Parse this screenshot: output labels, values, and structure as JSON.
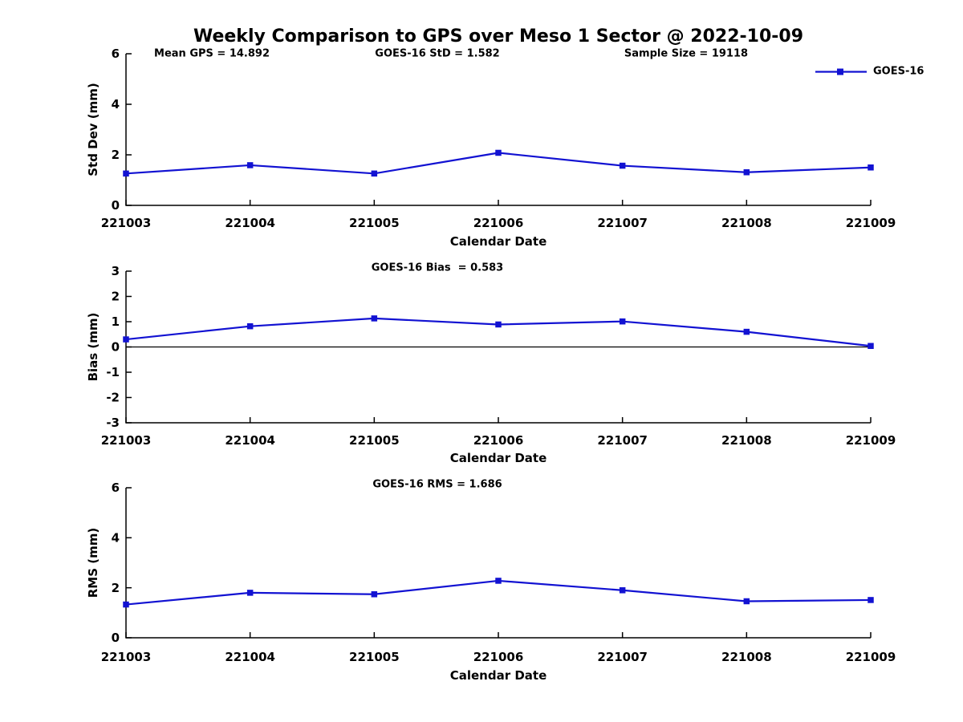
{
  "title": "Weekly Comparison to GPS over Meso 1 Sector @ 2022-10-09",
  "colors": {
    "series": "#1212D2",
    "axis": "#000000",
    "zero_line": "#000000",
    "background": "#FFFFFF"
  },
  "legend": {
    "label": "GOES-16",
    "marker": "square",
    "position": "top-right"
  },
  "chart_data": [
    {
      "type": "line",
      "title": "",
      "annotations": [
        "Mean GPS = 14.892",
        "GOES-16 StD = 1.582",
        "Sample Size = 19118"
      ],
      "ylabel": "Std Dev (mm)",
      "xlabel": "Calendar Date",
      "categories": [
        "221003",
        "221004",
        "221005",
        "221006",
        "221007",
        "221008",
        "221009"
      ],
      "ylim": [
        0,
        6
      ],
      "yticks": [
        0,
        2,
        4,
        6
      ],
      "grid": false,
      "zero_line": false,
      "legend_position": "top-right",
      "series": [
        {
          "name": "GOES-16",
          "marker": "square",
          "values": [
            1.26,
            1.59,
            1.26,
            2.08,
            1.57,
            1.31,
            1.5
          ]
        }
      ]
    },
    {
      "type": "line",
      "title": "GOES-16 Bias  = 0.583",
      "annotations": [],
      "ylabel": "Bias (mm)",
      "xlabel": "Calendar Date",
      "categories": [
        "221003",
        "221004",
        "221005",
        "221006",
        "221007",
        "221008",
        "221009"
      ],
      "ylim": [
        -3,
        3
      ],
      "yticks": [
        -3,
        -2,
        -1,
        0,
        1,
        2,
        3
      ],
      "grid": false,
      "zero_line": true,
      "legend_position": "none",
      "series": [
        {
          "name": "GOES-16",
          "marker": "square",
          "values": [
            0.3,
            0.82,
            1.13,
            0.89,
            1.01,
            0.6,
            0.04
          ]
        }
      ]
    },
    {
      "type": "line",
      "title": "GOES-16 RMS = 1.686",
      "annotations": [],
      "ylabel": "RMS (mm)",
      "xlabel": "Calendar Date",
      "categories": [
        "221003",
        "221004",
        "221005",
        "221006",
        "221007",
        "221008",
        "221009"
      ],
      "ylim": [
        0,
        6
      ],
      "yticks": [
        0,
        2,
        4,
        6
      ],
      "grid": false,
      "zero_line": false,
      "legend_position": "none",
      "series": [
        {
          "name": "GOES-16",
          "marker": "square",
          "values": [
            1.33,
            1.8,
            1.74,
            2.28,
            1.9,
            1.46,
            1.51
          ]
        }
      ]
    }
  ]
}
